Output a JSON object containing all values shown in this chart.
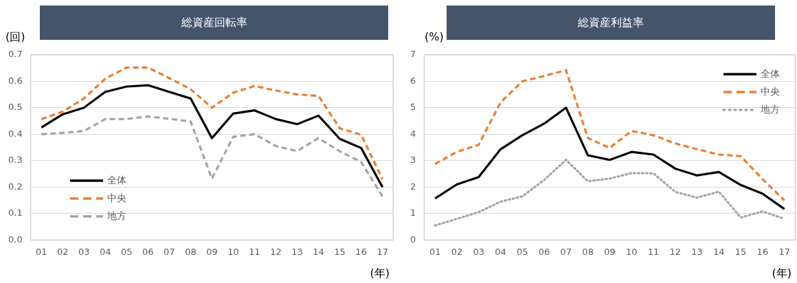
{
  "chart_data": [
    {
      "type": "line",
      "title": "総資産回転率",
      "ylabel": "(回)",
      "xlabel": "(年)",
      "categories": [
        "01",
        "02",
        "03",
        "04",
        "05",
        "06",
        "07",
        "08",
        "09",
        "10",
        "11",
        "12",
        "13",
        "14",
        "15",
        "16",
        "17"
      ],
      "ylim": [
        0,
        0.7
      ],
      "yticks": [
        {
          "value": 0,
          "label": "0.0"
        },
        0.1,
        0.2,
        0.3,
        0.4,
        0.5,
        0.6,
        0.7
      ],
      "grid": "y",
      "legend": "bottom left",
      "marker": "none",
      "series": [
        {
          "name": "全体",
          "color": "#000000",
          "line_style": "solid",
          "values": [
            0.425,
            0.475,
            0.5,
            0.56,
            0.58,
            0.585,
            0.56,
            0.535,
            0.385,
            0.478,
            0.49,
            0.457,
            0.438,
            0.47,
            0.382,
            0.348,
            0.2
          ]
        },
        {
          "name": "中央",
          "color": "#ed7d31",
          "line_style": "dashed",
          "values": [
            0.457,
            0.485,
            0.535,
            0.61,
            0.652,
            0.652,
            0.612,
            0.57,
            0.5,
            0.557,
            0.582,
            0.565,
            0.55,
            0.545,
            0.422,
            0.398,
            0.23
          ]
        },
        {
          "name": "地方",
          "color": "#a5a5a5",
          "line_style": "dashed",
          "values": [
            0.4,
            0.405,
            0.412,
            0.457,
            0.457,
            0.467,
            0.458,
            0.448,
            0.232,
            0.39,
            0.4,
            0.355,
            0.336,
            0.385,
            0.335,
            0.295,
            0.165
          ]
        }
      ]
    },
    {
      "type": "line",
      "title": "総資産利益率",
      "ylabel": "(%)",
      "xlabel": "(年)",
      "categories": [
        "01",
        "02",
        "03",
        "04",
        "05",
        "06",
        "07",
        "08",
        "09",
        "10",
        "11",
        "12",
        "13",
        "14",
        "15",
        "16",
        "17"
      ],
      "ylim": [
        0,
        7
      ],
      "yticks": [
        0,
        1,
        2,
        3,
        4,
        5,
        6,
        7
      ],
      "grid": "y",
      "legend": "top right",
      "marker": "none",
      "series": [
        {
          "name": "全体",
          "color": "#000000",
          "line_style": "solid",
          "values": [
            1.57,
            2.1,
            2.38,
            3.43,
            3.96,
            4.4,
            5.0,
            3.2,
            3.03,
            3.33,
            3.23,
            2.7,
            2.44,
            2.57,
            2.08,
            1.75,
            1.17
          ]
        },
        {
          "name": "中央",
          "color": "#ed7d31",
          "line_style": "dashed",
          "values": [
            2.87,
            3.33,
            3.6,
            5.2,
            6.0,
            6.2,
            6.42,
            3.85,
            3.48,
            4.12,
            3.96,
            3.65,
            3.43,
            3.23,
            3.17,
            2.3,
            1.5
          ]
        },
        {
          "name": "地方",
          "color": "#a5a5a5",
          "line_style": "dotted",
          "values": [
            0.55,
            0.8,
            1.05,
            1.45,
            1.65,
            2.27,
            3.03,
            2.22,
            2.32,
            2.53,
            2.52,
            1.82,
            1.6,
            1.83,
            0.85,
            1.08,
            0.8
          ]
        }
      ]
    }
  ]
}
